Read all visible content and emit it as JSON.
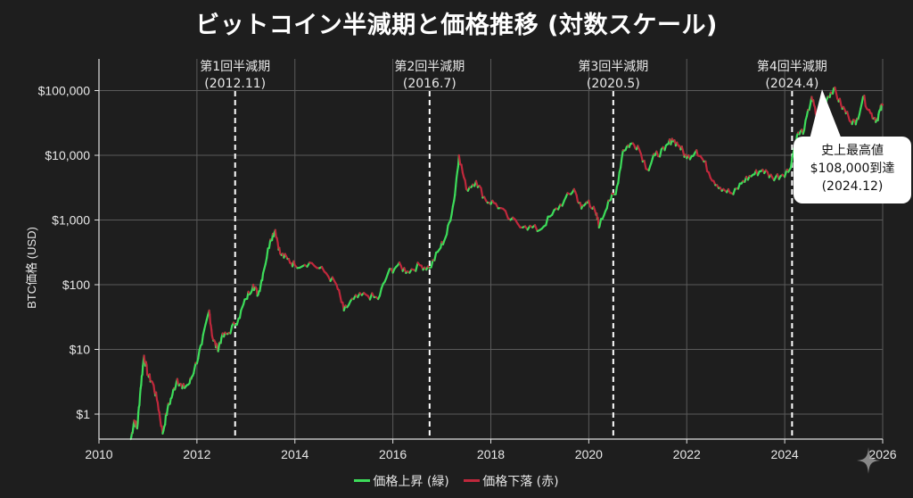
{
  "chart_data": {
    "type": "line",
    "title": "ビットコイン半減期と価格推移 (対数スケール)",
    "xlabel": "",
    "ylabel": "BTC価格 (USD)",
    "yscale": "log",
    "xlim": [
      2010,
      2026
    ],
    "ylim": [
      0.4,
      150000
    ],
    "grid": true,
    "x_ticks": [
      "2010",
      "2012",
      "2014",
      "2016",
      "2018",
      "2020",
      "2022",
      "2024",
      "2026"
    ],
    "y_ticks": [
      {
        "value": 1,
        "label": "$1"
      },
      {
        "value": 10,
        "label": "$10"
      },
      {
        "value": 100,
        "label": "$100"
      },
      {
        "value": 1000,
        "label": "$1,000"
      },
      {
        "value": 10000,
        "label": "$10,000"
      },
      {
        "value": 100000,
        "label": "$100,000"
      }
    ],
    "legend": {
      "position": "bottom-center",
      "entries": [
        {
          "label": "価格上昇 (緑)",
          "color": "#3ddc5a"
        },
        {
          "label": "価格下落 (赤)",
          "color": "#c0283c"
        }
      ]
    },
    "series": [
      {
        "name": "BTC価格",
        "x": [
          2010.65,
          2010.72,
          2010.78,
          2010.85,
          2010.92,
          2011.0,
          2011.1,
          2011.2,
          2011.3,
          2011.4,
          2011.5,
          2011.6,
          2011.7,
          2011.85,
          2011.95,
          2012.1,
          2012.25,
          2012.32,
          2012.42,
          2012.5,
          2012.65,
          2012.85,
          2013.0,
          2013.15,
          2013.25,
          2013.35,
          2013.5,
          2013.6,
          2013.7,
          2013.85,
          2014.0,
          2014.3,
          2014.6,
          2014.85,
          2015.0,
          2015.2,
          2015.45,
          2015.7,
          2015.9,
          2016.1,
          2016.3,
          2016.55,
          2016.75,
          2016.95,
          2017.1,
          2017.25,
          2017.35,
          2017.5,
          2017.7,
          2017.9,
          2018.1,
          2018.4,
          2018.7,
          2019.0,
          2019.25,
          2019.5,
          2019.7,
          2019.85,
          2020.0,
          2020.15,
          2020.22,
          2020.4,
          2020.55,
          2020.7,
          2020.85,
          2021.0,
          2021.2,
          2021.35,
          2021.55,
          2021.7,
          2021.85,
          2022.0,
          2022.2,
          2022.35,
          2022.55,
          2022.75,
          2022.95,
          2023.15,
          2023.35,
          2023.55,
          2023.75,
          2023.95,
          2024.1,
          2024.25,
          2024.4,
          2024.55,
          2024.65,
          2024.75,
          2024.88,
          2025.0,
          2025.15,
          2025.3,
          2025.45,
          2025.6,
          2025.75,
          2025.88,
          2025.95,
          2026.0
        ],
        "y": [
          0.4,
          0.8,
          0.6,
          2.5,
          8,
          4,
          3,
          1.5,
          0.5,
          1.2,
          2,
          3.5,
          2.5,
          3,
          5,
          12,
          40,
          15,
          10,
          15,
          18,
          30,
          60,
          100,
          70,
          150,
          500,
          700,
          300,
          250,
          200,
          220,
          160,
          100,
          40,
          60,
          70,
          60,
          150,
          200,
          160,
          200,
          180,
          350,
          600,
          2000,
          10000,
          3000,
          4000,
          2000,
          1800,
          1000,
          800,
          700,
          1200,
          2000,
          3000,
          1500,
          2000,
          1200,
          800,
          2000,
          2500,
          12000,
          15000,
          14000,
          6000,
          10000,
          12000,
          18000,
          14000,
          9000,
          12000,
          8000,
          4000,
          3000,
          2500,
          4000,
          5000,
          6000,
          4500,
          5000,
          6000,
          20000,
          25000,
          80000,
          40000,
          50000,
          80000,
          108000,
          60000,
          40000,
          30000,
          80000,
          45000,
          35000,
          50000,
          60000
        ]
      }
    ],
    "annotations": [
      {
        "type": "vline",
        "x": 2012.78,
        "label_line1": "第1回半減期",
        "label_line2": "(2012.11)"
      },
      {
        "type": "vline",
        "x": 2016.75,
        "label_line1": "第2回半減期",
        "label_line2": "(2016.7)"
      },
      {
        "type": "vline",
        "x": 2020.5,
        "label_line1": "第3回半減期",
        "label_line2": "(2020.5)"
      },
      {
        "type": "vline",
        "x": 2024.15,
        "label_line1": "第4回半減期",
        "label_line2": "(2024.4)"
      },
      {
        "type": "callout",
        "x": 2024.98,
        "y": 108000,
        "lines": [
          "史上最高値",
          "$108,000到達",
          "(2024.12)"
        ]
      }
    ]
  },
  "colors": {
    "background": "#1e1e1e",
    "grid": "#5a5a5a",
    "axis": "#e0e0e0",
    "up": "#3ddc5a",
    "down": "#c0283c",
    "halving_line": "#ffffff",
    "callout_bg": "#ffffff"
  },
  "watermark": {
    "icon": "sparkle-icon"
  }
}
